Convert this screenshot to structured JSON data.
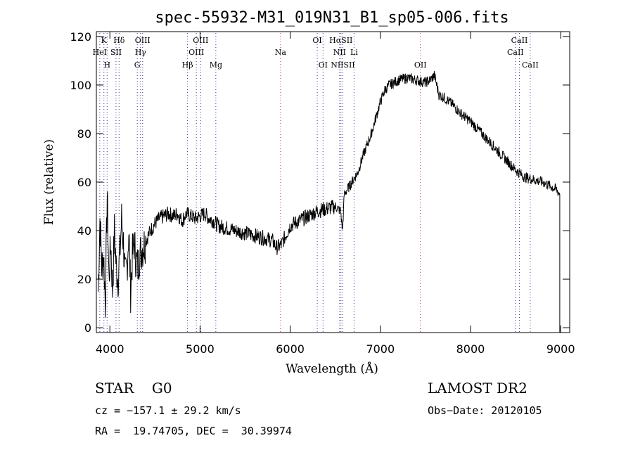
{
  "chart_data": {
    "type": "line",
    "title": "spec-55932-M31_019N31_B1_sp05-006.fits",
    "xlabel": "Wavelength (Å)",
    "ylabel": "Flux (relative)",
    "xlim": [
      3850,
      9100
    ],
    "ylim": [
      -2,
      122
    ],
    "x_ticks": [
      4000,
      5000,
      6000,
      7000,
      8000,
      9000
    ],
    "y_ticks": [
      0,
      20,
      40,
      60,
      80,
      100,
      120
    ],
    "grid": false,
    "series": [
      {
        "x": [
          3870,
          3890,
          3910,
          3930,
          3950,
          3970,
          3990,
          4010,
          4030,
          4050,
          4070,
          4090,
          4110,
          4130,
          4150,
          4170,
          4190,
          4210,
          4230,
          4250,
          4270,
          4290,
          4310,
          4330,
          4350,
          4400,
          4450,
          4500,
          4550,
          4600,
          4650,
          4700,
          4750,
          4800,
          4850,
          4900,
          4950,
          5000,
          5050,
          5100,
          5150,
          5200,
          5300,
          5400,
          5500,
          5600,
          5700,
          5800,
          5850,
          5900,
          5950,
          6000,
          6100,
          6200,
          6300,
          6400,
          6500,
          6560,
          6580,
          6600,
          6650,
          6700,
          6750,
          6800,
          6900,
          7000,
          7050,
          7100,
          7150,
          7200,
          7300,
          7400,
          7500,
          7550,
          7600,
          7650,
          7700,
          7800,
          7900,
          8000,
          8100,
          8200,
          8300,
          8400,
          8500,
          8600,
          8700,
          8800,
          8900,
          8950,
          8990
        ],
        "y": [
          15,
          45,
          25,
          30,
          10,
          55,
          20,
          35,
          15,
          40,
          25,
          20,
          30,
          45,
          35,
          20,
          25,
          40,
          15,
          30,
          35,
          28,
          25,
          30,
          32,
          36,
          40,
          43,
          45,
          46,
          47,
          46,
          47,
          44,
          47,
          46,
          45,
          46,
          47,
          45,
          44,
          42,
          41,
          40,
          39,
          38,
          37,
          36,
          33,
          34,
          38,
          42,
          44,
          46,
          48,
          49,
          50,
          48,
          40,
          55,
          58,
          61,
          64,
          70,
          80,
          93,
          98,
          100,
          101,
          102,
          103,
          102,
          101,
          102,
          104,
          96,
          95,
          92,
          88,
          85,
          81,
          77,
          73,
          69,
          65,
          62,
          61,
          60,
          58,
          57,
          55
        ]
      }
    ],
    "spectral_lines": {
      "blue": [
        {
          "label": "K",
          "x": 3934,
          "row": 1
        },
        {
          "label": "HeI",
          "x": 3888,
          "row": 2
        },
        {
          "label": "H",
          "x": 3969,
          "row": 3
        },
        {
          "label": "Hδ",
          "x": 4102,
          "row": 1
        },
        {
          "label": "SII",
          "x": 4068,
          "row": 2
        },
        {
          "label": "OIII",
          "x": 4363,
          "row": 1
        },
        {
          "label": "Hγ",
          "x": 4340,
          "row": 2
        },
        {
          "label": "G",
          "x": 4304,
          "row": 3
        },
        {
          "label": "OIII",
          "x": 5007,
          "row": 1
        },
        {
          "label": "OIII",
          "x": 4959,
          "row": 2
        },
        {
          "label": "Hβ",
          "x": 4861,
          "row": 3
        },
        {
          "label": "Mg",
          "x": 5175,
          "row": 3
        },
        {
          "label": "OI",
          "x": 6300,
          "row": 1
        },
        {
          "label": "OI",
          "x": 6364,
          "row": 3
        },
        {
          "label": "HαSII",
          "x": 6563,
          "row": 1
        },
        {
          "label": "NII",
          "x": 6548,
          "row": 2
        },
        {
          "label": "Li",
          "x": 6708,
          "row": 2
        },
        {
          "label": "NIISII",
          "x": 6584,
          "row": 3
        },
        {
          "label": "CaII",
          "x": 8542,
          "row": 1
        },
        {
          "label": "CaII",
          "x": 8498,
          "row": 2
        },
        {
          "label": "CaII",
          "x": 8662,
          "row": 3
        }
      ],
      "red": [
        {
          "label": "Na",
          "x": 5893,
          "row": 2
        },
        {
          "label": "OII",
          "x": 7444,
          "row": 3
        }
      ]
    }
  },
  "info": {
    "left": {
      "class_text": "STAR    G0",
      "cz_text": "cz = −157.1 ± 29.2 km/s",
      "radec_text": "RA =  19.74705, DEC =  30.39974"
    },
    "right": {
      "survey_text": "LAMOST DR2",
      "obsdate_text": "Obs−Date: 20120105"
    }
  },
  "colors": {
    "axis": "#000000",
    "data": "#000000",
    "blue_lines": "#3a3a9a",
    "red_lines": "#c0392b"
  }
}
